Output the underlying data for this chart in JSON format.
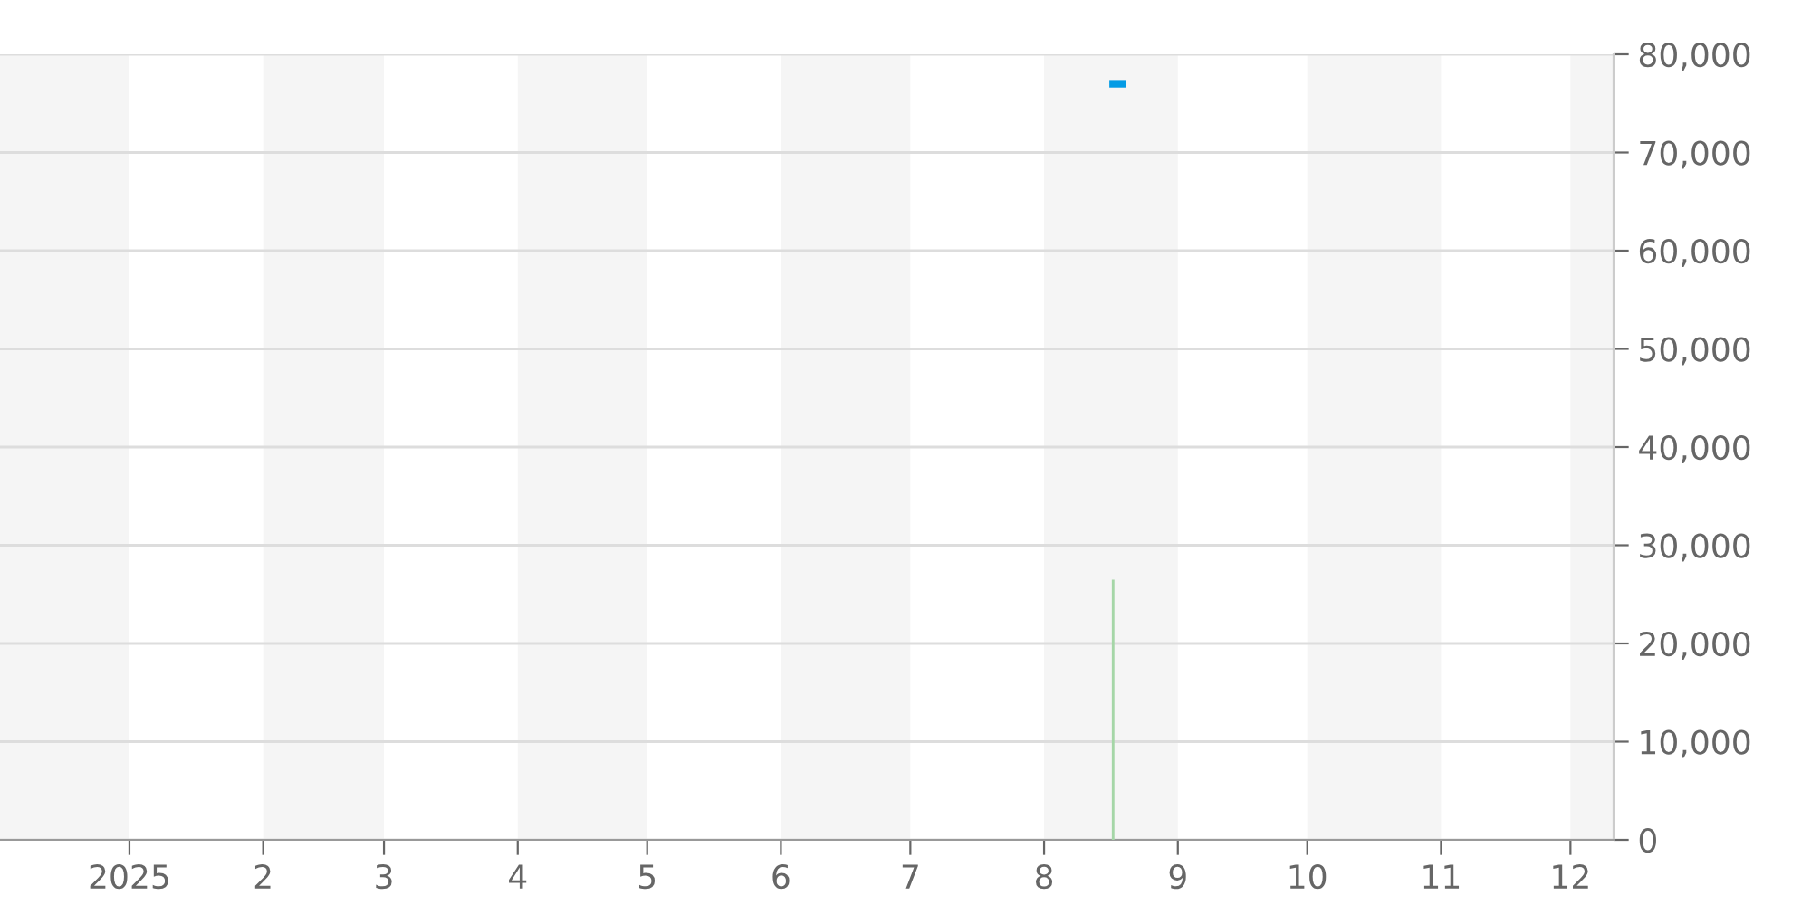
{
  "chart_data": {
    "type": "bar",
    "xlim": [
      "2024-12-02",
      "2025-12-11"
    ],
    "xticks": [
      {
        "value": "2025-01-01",
        "label": "2025"
      },
      {
        "value": "2025-02-01",
        "label": "2"
      },
      {
        "value": "2025-03-01",
        "label": "3"
      },
      {
        "value": "2025-04-01",
        "label": "4"
      },
      {
        "value": "2025-05-01",
        "label": "5"
      },
      {
        "value": "2025-06-01",
        "label": "6"
      },
      {
        "value": "2025-07-01",
        "label": "7"
      },
      {
        "value": "2025-08-01",
        "label": "8"
      },
      {
        "value": "2025-09-01",
        "label": "9"
      },
      {
        "value": "2025-10-01",
        "label": "10"
      },
      {
        "value": "2025-11-01",
        "label": "11"
      },
      {
        "value": "2025-12-01",
        "label": "12"
      }
    ],
    "ylim": [
      0,
      80000
    ],
    "yticks": [
      {
        "value": 0,
        "label": "0"
      },
      {
        "value": 10000,
        "label": "10,000"
      },
      {
        "value": 20000,
        "label": "20,000"
      },
      {
        "value": 30000,
        "label": "30,000"
      },
      {
        "value": 40000,
        "label": "40,000"
      },
      {
        "value": 50000,
        "label": "50,000"
      },
      {
        "value": 60000,
        "label": "60,000"
      },
      {
        "value": 70000,
        "label": "70,000"
      },
      {
        "value": 80000,
        "label": "80,000"
      }
    ],
    "grid": "y",
    "series": [
      {
        "color": "#a5d6a7",
        "x": [
          "2025-08-17"
        ],
        "values": [
          26500
        ]
      },
      {
        "type": "line",
        "color": "#039be5",
        "x": [
          "2025-08-17",
          "2025-08-19"
        ],
        "values": [
          77000,
          77000
        ]
      }
    ],
    "bands": [
      {
        "axis": "x",
        "from": "2024-12-02",
        "to": "2025-01-01",
        "color": "#f5f5f5"
      },
      {
        "axis": "x",
        "from": "2025-02-01",
        "to": "2025-03-01",
        "color": "#f5f5f5"
      },
      {
        "axis": "x",
        "from": "2025-04-01",
        "to": "2025-05-01",
        "color": "#f5f5f5"
      },
      {
        "axis": "x",
        "from": "2025-06-01",
        "to": "2025-07-01",
        "color": "#f5f5f5"
      },
      {
        "axis": "x",
        "from": "2025-08-01",
        "to": "2025-09-01",
        "color": "#f5f5f5"
      },
      {
        "axis": "x",
        "from": "2025-10-01",
        "to": "2025-11-01",
        "color": "#f5f5f5"
      },
      {
        "axis": "x",
        "from": "2025-12-01",
        "to": "2025-12-11",
        "color": "#f5f5f5"
      }
    ]
  }
}
